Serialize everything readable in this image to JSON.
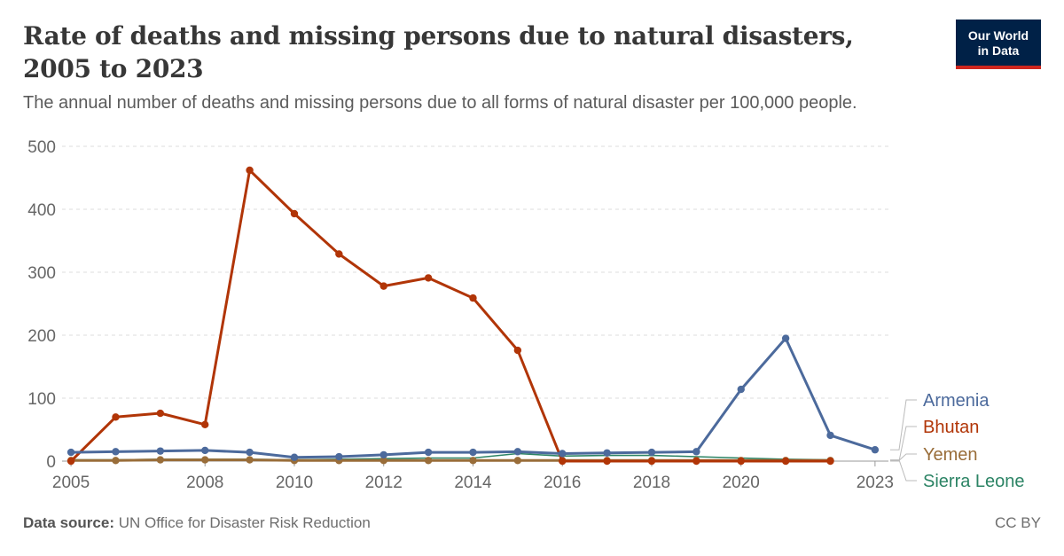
{
  "header": {
    "title": "Rate of deaths and missing persons due to natural disasters, 2005 to 2023",
    "subtitle": "The annual number of deaths and missing persons due to all forms of natural disaster per 100,000 people."
  },
  "logo": {
    "line1": "Our World",
    "line2": "in Data"
  },
  "footer": {
    "source_label": "Data source:",
    "source_text": "UN Office for Disaster Risk Reduction",
    "license": "CC BY"
  },
  "chart_data": {
    "type": "line",
    "title": "Rate of deaths and missing persons due to natural disasters, 2005 to 2023",
    "xlim": [
      2004.8,
      2023.3
    ],
    "ylim": [
      0,
      500
    ],
    "x_ticks": [
      2005,
      2008,
      2010,
      2012,
      2014,
      2016,
      2018,
      2020,
      2023
    ],
    "y_ticks": [
      0,
      100,
      200,
      300,
      400,
      500
    ],
    "grid": "horizontal dashed",
    "legend": "right (line-end labels)",
    "series": [
      {
        "name": "Armenia",
        "color": "#4c6a9c",
        "points": [
          [
            2005,
            14
          ],
          [
            2006,
            15
          ],
          [
            2007,
            16
          ],
          [
            2008,
            17
          ],
          [
            2009,
            14
          ],
          [
            2010,
            6
          ],
          [
            2011,
            7
          ],
          [
            2012,
            10
          ],
          [
            2013,
            14
          ],
          [
            2014,
            14
          ],
          [
            2015,
            15
          ],
          [
            2016,
            12
          ],
          [
            2017,
            13
          ],
          [
            2018,
            14
          ],
          [
            2019,
            15
          ],
          [
            2020,
            114
          ],
          [
            2021,
            195
          ],
          [
            2022,
            41
          ],
          [
            2023,
            18
          ]
        ]
      },
      {
        "name": "Bhutan",
        "color": "#b13507",
        "points": [
          [
            2005,
            0
          ],
          [
            2006,
            70
          ],
          [
            2007,
            76
          ],
          [
            2008,
            58
          ],
          [
            2009,
            462
          ],
          [
            2010,
            393
          ],
          [
            2011,
            329
          ],
          [
            2012,
            278
          ],
          [
            2013,
            291
          ],
          [
            2014,
            259
          ],
          [
            2015,
            176
          ],
          [
            2016,
            0
          ],
          [
            2017,
            0
          ],
          [
            2018,
            0
          ],
          [
            2019,
            0
          ],
          [
            2020,
            0
          ],
          [
            2021,
            0
          ],
          [
            2022,
            0
          ]
        ]
      },
      {
        "name": "Yemen",
        "color": "#996d39",
        "points": [
          [
            2005,
            1
          ],
          [
            2006,
            1
          ],
          [
            2007,
            2
          ],
          [
            2008,
            2
          ],
          [
            2009,
            2
          ],
          [
            2010,
            1
          ],
          [
            2011,
            1
          ],
          [
            2012,
            1
          ],
          [
            2013,
            1
          ],
          [
            2014,
            1
          ],
          [
            2015,
            1
          ],
          [
            2016,
            1
          ],
          [
            2017,
            1
          ],
          [
            2018,
            1
          ],
          [
            2019,
            1
          ],
          [
            2020,
            1
          ],
          [
            2021,
            1
          ],
          [
            2022,
            1
          ]
        ]
      },
      {
        "name": "Sierra Leone",
        "color": "#2c8465",
        "points": [
          [
            2005,
            2
          ],
          [
            2006,
            2
          ],
          [
            2007,
            3
          ],
          [
            2008,
            3
          ],
          [
            2009,
            3
          ],
          [
            2010,
            2
          ],
          [
            2011,
            3
          ],
          [
            2012,
            4
          ],
          [
            2013,
            5
          ],
          [
            2014,
            5
          ],
          [
            2015,
            12
          ],
          [
            2016,
            8
          ],
          [
            2017,
            9
          ],
          [
            2018,
            9
          ],
          [
            2019,
            7
          ],
          [
            2020,
            5
          ],
          [
            2021,
            3
          ],
          [
            2022,
            2
          ]
        ]
      }
    ]
  }
}
